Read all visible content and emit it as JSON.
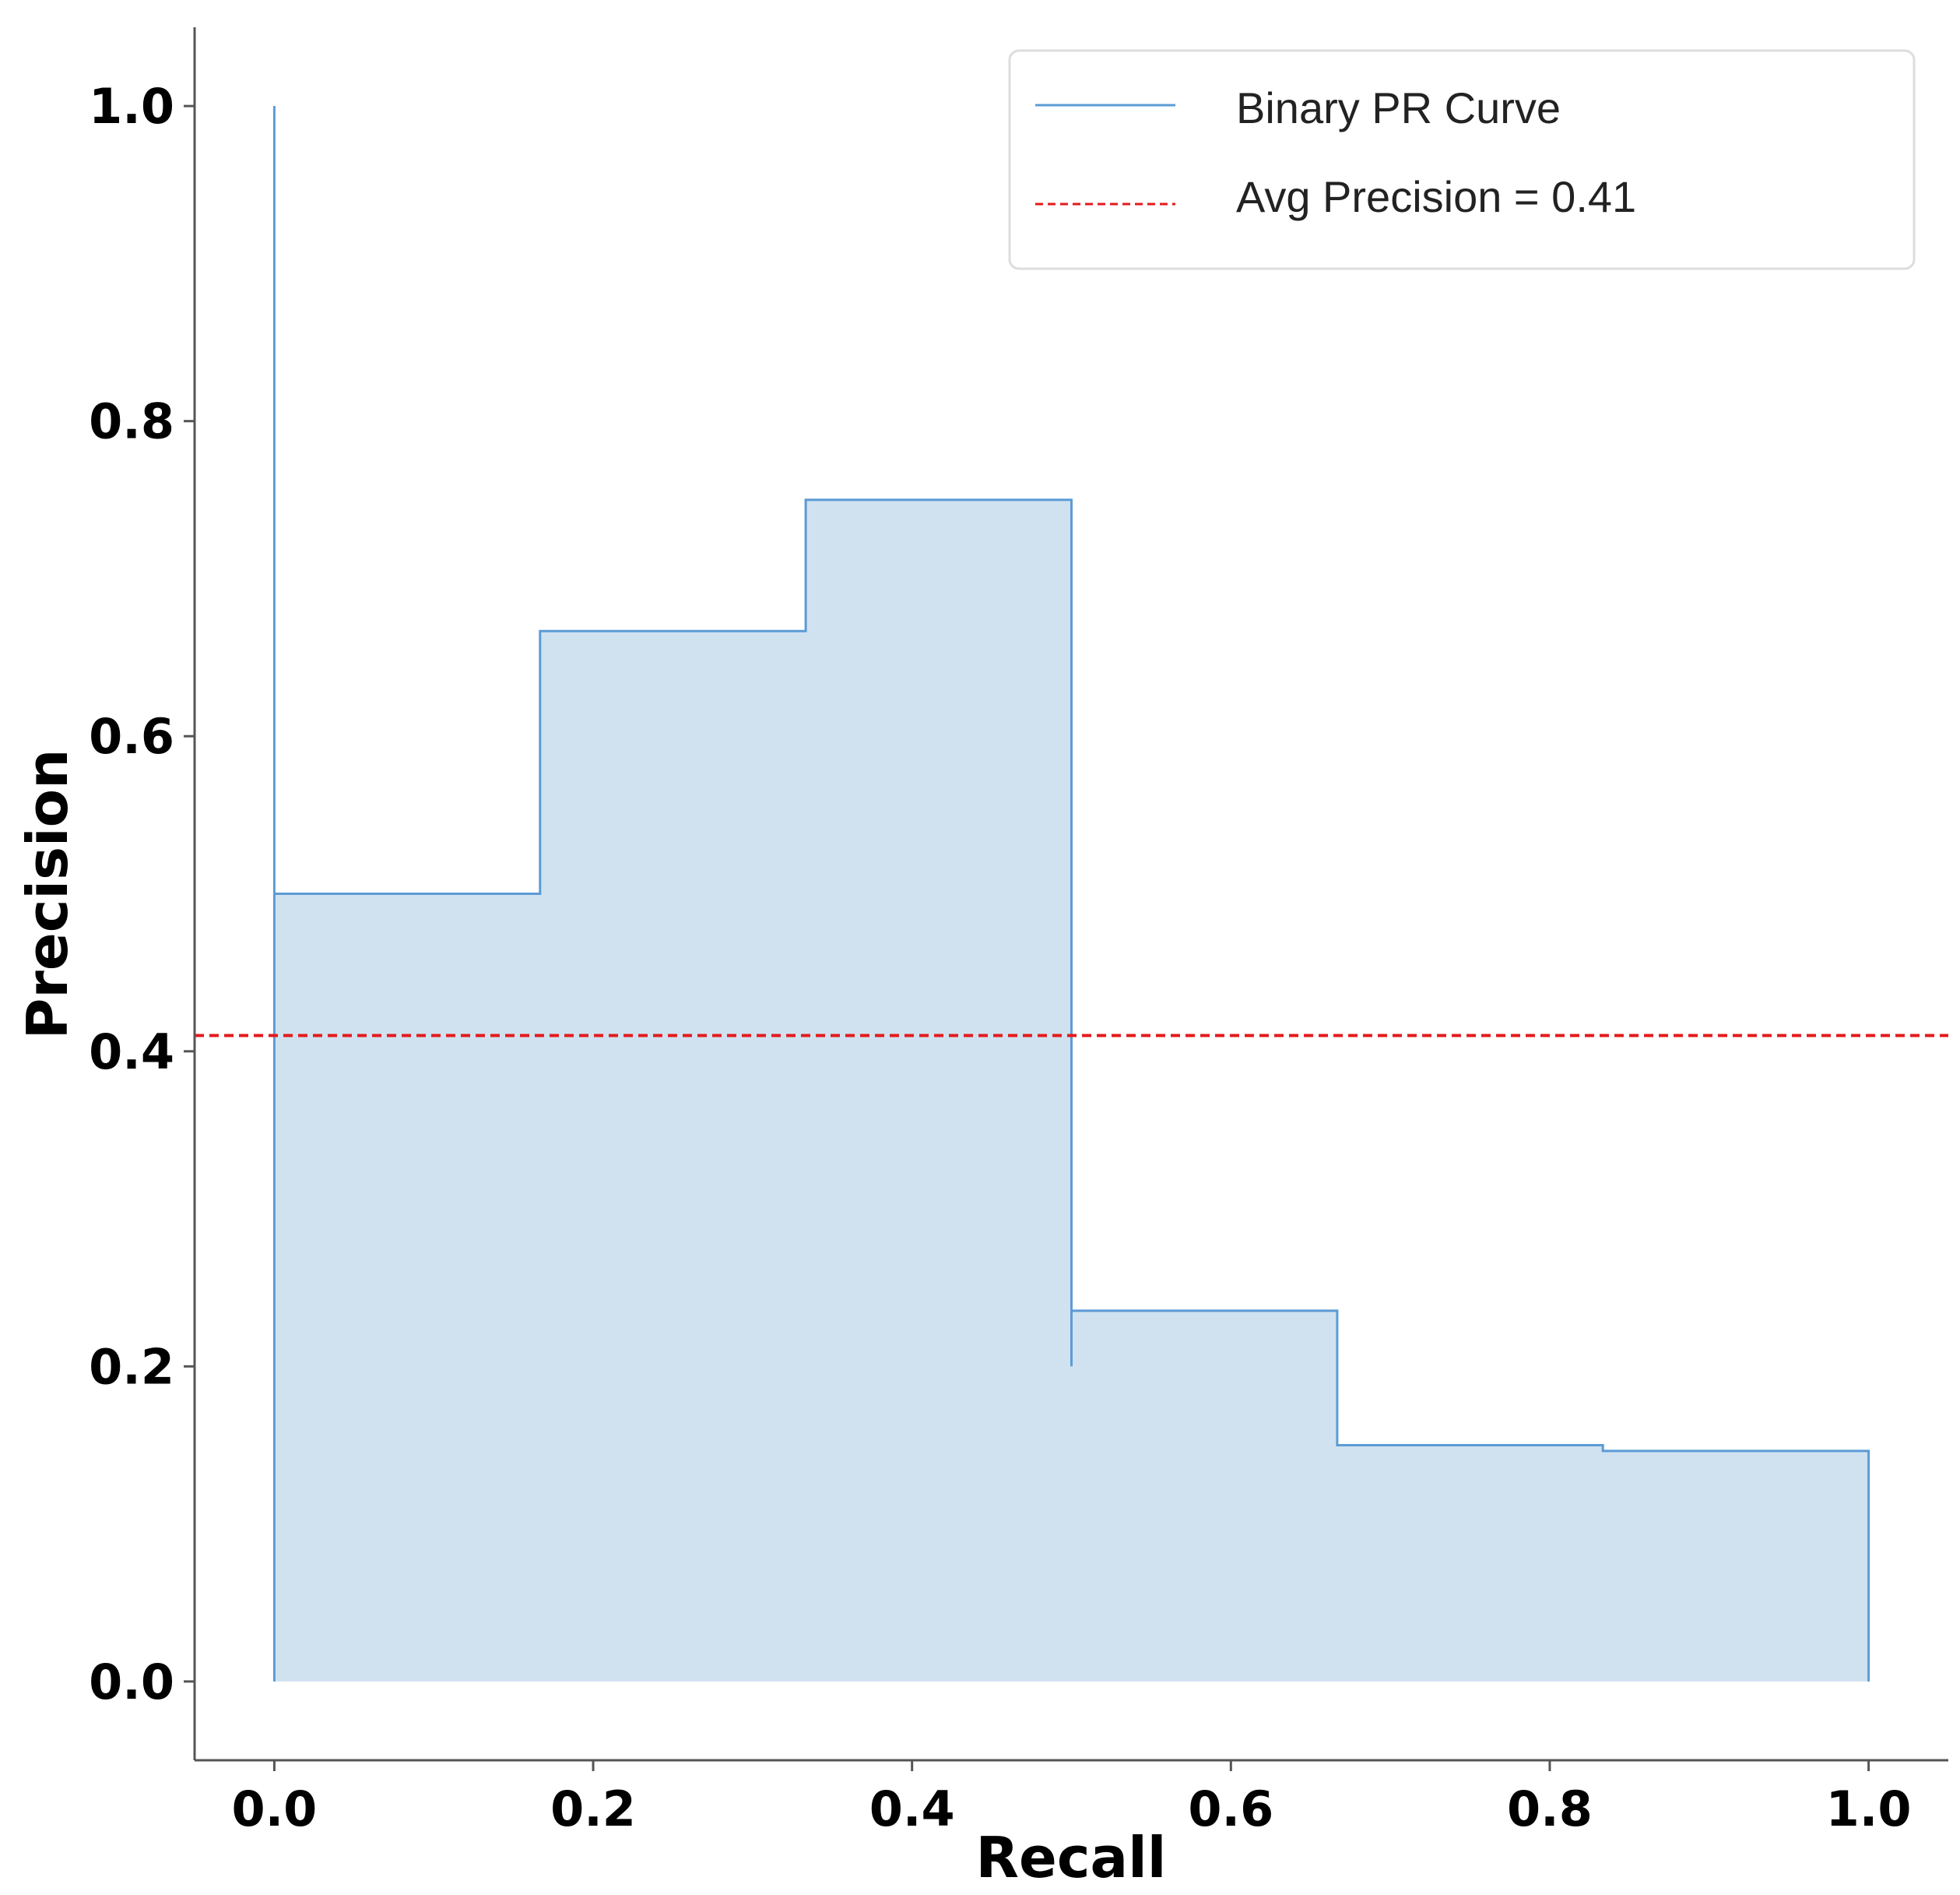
{
  "chart_data": {
    "type": "line",
    "subtype": "step-with-fill",
    "title": "",
    "xlabel": "Recall",
    "ylabel": "Precision",
    "xlim": [
      -0.05,
      1.05
    ],
    "ylim": [
      -0.05,
      1.05
    ],
    "xticks": [
      "0.0",
      "0.2",
      "0.4",
      "0.6",
      "0.8",
      "1.0"
    ],
    "yticks": [
      "0.0",
      "0.2",
      "0.4",
      "0.6",
      "0.8",
      "1.0"
    ],
    "grid": false,
    "legend_position": "top-right",
    "series": [
      {
        "name": "Binary PR Curve",
        "style": "solid-step",
        "color": "#5b9bd5",
        "fill_color": "#d0e2f0",
        "points": [
          [
            0.0,
            0.0
          ],
          [
            0.0,
            1.0
          ],
          [
            0.0,
            0.5
          ],
          [
            0.1667,
            0.5
          ],
          [
            0.1667,
            0.6667
          ],
          [
            0.3333,
            0.6667
          ],
          [
            0.3333,
            0.75
          ],
          [
            0.5,
            0.75
          ],
          [
            0.5,
            0.2
          ],
          [
            0.5,
            0.2353
          ],
          [
            0.6667,
            0.2353
          ],
          [
            0.6667,
            0.15
          ],
          [
            0.8333,
            0.15
          ],
          [
            0.8333,
            0.1463
          ],
          [
            1.0,
            0.1463
          ],
          [
            1.0,
            0.0
          ]
        ]
      },
      {
        "name": "Avg Precision = 0.41",
        "style": "dashed-hline",
        "color": "#e41a1c",
        "y": 0.41
      }
    ]
  }
}
